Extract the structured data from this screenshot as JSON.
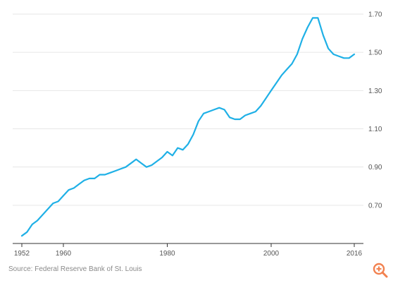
{
  "chart_data": {
    "type": "line",
    "title": "",
    "xlabel": "",
    "ylabel": "",
    "xlim": [
      1952,
      2016
    ],
    "ylim": [
      0.5,
      1.7
    ],
    "y_ticks": [
      0.7,
      0.9,
      1.1,
      1.3,
      1.5,
      1.7
    ],
    "y_tick_labels": [
      "0.70",
      "0.90",
      "1.10",
      "1.30",
      "1.50",
      "1.70"
    ],
    "x_ticks": [
      1952,
      1960,
      1980,
      2000,
      2016
    ],
    "x_tick_labels": [
      "1952",
      "1960",
      "1980",
      "2000",
      "2016"
    ],
    "grid": "horizontal",
    "line_color": "#1fb0e6",
    "series": [
      {
        "x": [
          1952,
          1953,
          1954,
          1955,
          1956,
          1957,
          1958,
          1959,
          1960,
          1961,
          1962,
          1963,
          1964,
          1965,
          1966,
          1967,
          1968,
          1969,
          1970,
          1971,
          1972,
          1973,
          1974,
          1975,
          1976,
          1977,
          1978,
          1979,
          1980,
          1981,
          1982,
          1983,
          1984,
          1985,
          1986,
          1987,
          1988,
          1989,
          1990,
          1991,
          1992,
          1993,
          1994,
          1995,
          1996,
          1997,
          1998,
          1999,
          2000,
          2001,
          2002,
          2003,
          2004,
          2005,
          2006,
          2007,
          2008,
          2009,
          2010,
          2011,
          2012,
          2013,
          2014,
          2015,
          2016
        ],
        "values": [
          0.54,
          0.56,
          0.6,
          0.62,
          0.65,
          0.68,
          0.71,
          0.72,
          0.75,
          0.78,
          0.79,
          0.81,
          0.83,
          0.84,
          0.84,
          0.86,
          0.86,
          0.87,
          0.88,
          0.89,
          0.9,
          0.92,
          0.94,
          0.92,
          0.9,
          0.91,
          0.93,
          0.95,
          0.98,
          0.96,
          1.0,
          0.99,
          1.02,
          1.07,
          1.14,
          1.18,
          1.19,
          1.2,
          1.21,
          1.2,
          1.16,
          1.15,
          1.15,
          1.17,
          1.18,
          1.19,
          1.22,
          1.26,
          1.3,
          1.34,
          1.38,
          1.41,
          1.44,
          1.49,
          1.57,
          1.63,
          1.68,
          1.68,
          1.59,
          1.52,
          1.49,
          1.48,
          1.47,
          1.47,
          1.49
        ]
      }
    ]
  },
  "source": "Source: Federal Reserve Bank of St. Louis",
  "zoom_icon": "zoom-in-icon",
  "accent_color": "#f2814f"
}
